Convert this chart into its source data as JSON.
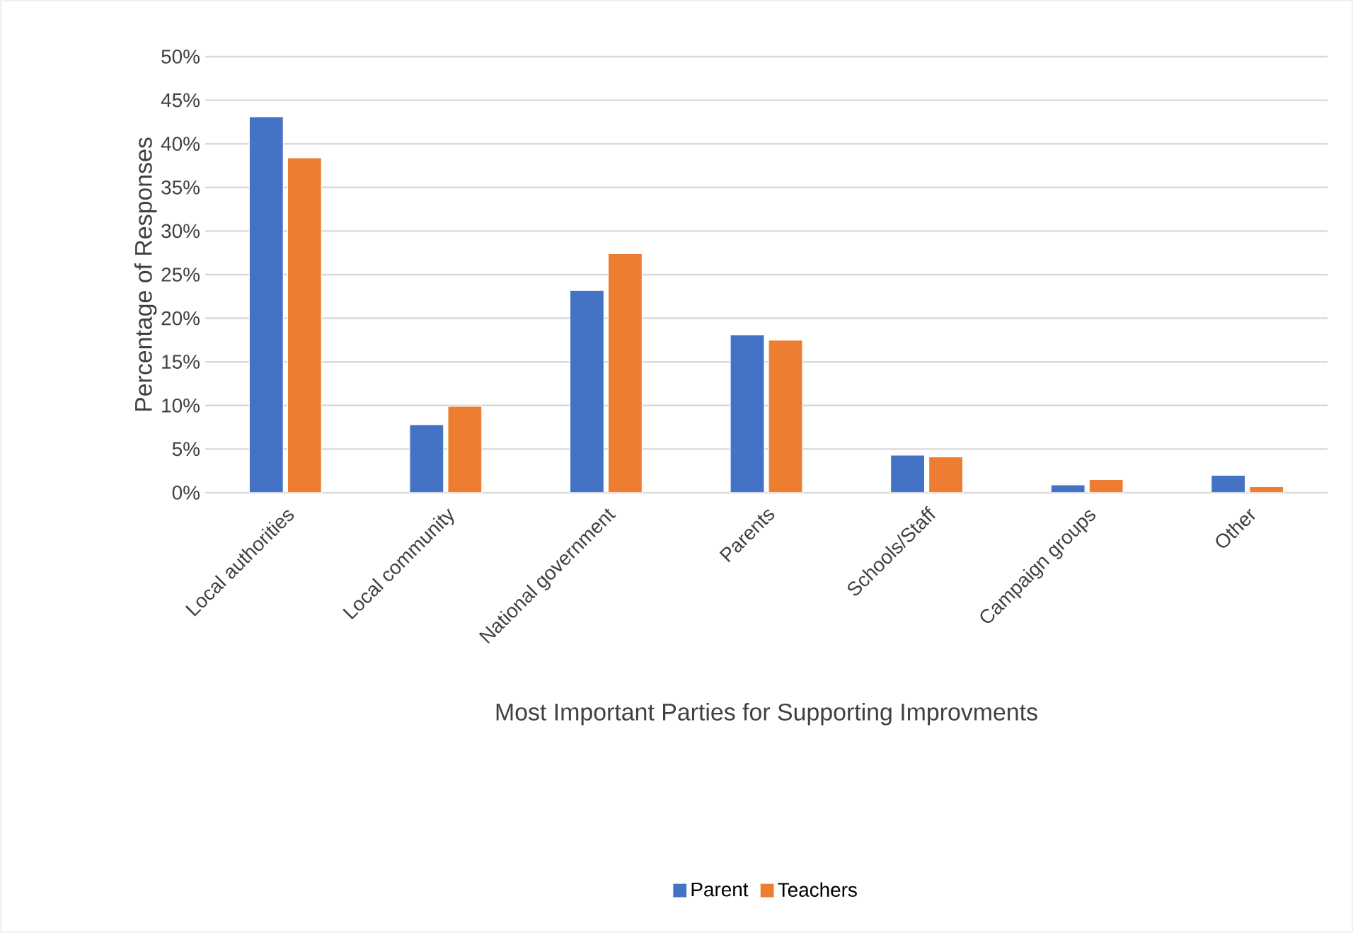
{
  "chart_data": {
    "type": "bar",
    "xlabel": "Most Important Parties for Supporting Improvments",
    "ylabel": "Percentage of Responses",
    "categories": [
      "Local authorities",
      "Local community",
      "National government",
      "Parents",
      "Schools/Staff",
      "Campaign groups",
      "Other"
    ],
    "series": [
      {
        "name": "Parent",
        "color": "#4472c4",
        "values": [
          43.1,
          7.8,
          23.2,
          18.1,
          4.3,
          0.9,
          2.0
        ]
      },
      {
        "name": "Teachers",
        "color": "#ed7d31",
        "values": [
          38.4,
          9.9,
          27.4,
          17.5,
          4.1,
          1.5,
          0.7
        ]
      }
    ],
    "ylim": [
      0,
      50
    ],
    "yticks": [
      {
        "value": 0,
        "label": "0%"
      },
      {
        "value": 5,
        "label": "5%"
      },
      {
        "value": 10,
        "label": "10%"
      },
      {
        "value": 15,
        "label": "15%"
      },
      {
        "value": 20,
        "label": "20%"
      },
      {
        "value": 25,
        "label": "25%"
      },
      {
        "value": 30,
        "label": "30%"
      },
      {
        "value": 35,
        "label": "35%"
      },
      {
        "value": 40,
        "label": "40%"
      },
      {
        "value": 45,
        "label": "45%"
      },
      {
        "value": 50,
        "label": "50%"
      }
    ],
    "grid": "y",
    "legend": "bottom"
  }
}
